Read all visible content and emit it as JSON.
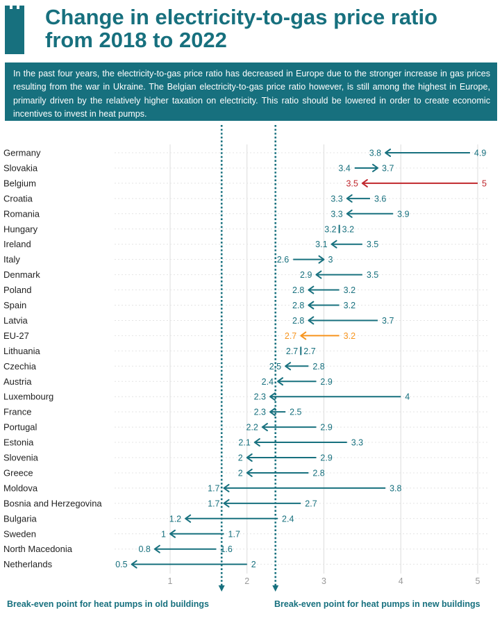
{
  "header": {
    "title_line1": "Change in electricity-to-gas price ratio",
    "title_line2": "from 2018 to 2022",
    "description": "In the past four years, the electricity-to-gas price ratio has decreased in Europe due to the stronger increase in gas prices resulting from the war in Ukraine. The Belgian electricity-to-gas price ratio however, is still among the highest in Europe, primarily driven by the relatively higher taxation on electricity. This ratio should be lowered in order to create economic incentives to invest in heat pumps."
  },
  "colors": {
    "primary": "#17707e",
    "belgium": "#c0272d",
    "eu27": "#f7941d",
    "text": "#222222"
  },
  "icons": {
    "logo": "tower-logo-icon",
    "arrowhead": "arrowhead-icon"
  },
  "chart_data": {
    "type": "dumbbell-arrow",
    "xlim": [
      0.5,
      5
    ],
    "x_ticks": [
      "1",
      "2",
      "3",
      "4",
      "5"
    ],
    "grid": true,
    "series_order": [
      "2018",
      "2022"
    ],
    "rows": [
      {
        "country": "Germany",
        "from": 4.9,
        "to": 3.8,
        "from_label": "4.9",
        "to_label": "3.8",
        "highlight": "none"
      },
      {
        "country": "Slovakia",
        "from": 3.4,
        "to": 3.7,
        "from_label": "3.4",
        "to_label": "3.7",
        "highlight": "none"
      },
      {
        "country": "Belgium",
        "from": 5,
        "to": 3.5,
        "from_label": "5",
        "to_label": "3.5",
        "highlight": "belgium"
      },
      {
        "country": "Croatia",
        "from": 3.6,
        "to": 3.3,
        "from_label": "3.6",
        "to_label": "3.3",
        "highlight": "none"
      },
      {
        "country": "Romania",
        "from": 3.9,
        "to": 3.3,
        "from_label": "3.9",
        "to_label": "3.3",
        "highlight": "none"
      },
      {
        "country": "Hungary",
        "from": 3.2,
        "to": 3.2,
        "from_label": "3.2",
        "to_label": "3.2",
        "highlight": "none"
      },
      {
        "country": "Ireland",
        "from": 3.5,
        "to": 3.1,
        "from_label": "3.5",
        "to_label": "3.1",
        "highlight": "none"
      },
      {
        "country": "Italy",
        "from": 2.6,
        "to": 3,
        "from_label": "2.6",
        "to_label": "3",
        "highlight": "none"
      },
      {
        "country": "Denmark",
        "from": 3.5,
        "to": 2.9,
        "from_label": "3.5",
        "to_label": "2.9",
        "highlight": "none"
      },
      {
        "country": "Poland",
        "from": 3.2,
        "to": 2.8,
        "from_label": "3.2",
        "to_label": "2.8",
        "highlight": "none"
      },
      {
        "country": "Spain",
        "from": 3.2,
        "to": 2.8,
        "from_label": "3.2",
        "to_label": "2.8",
        "highlight": "none"
      },
      {
        "country": "Latvia",
        "from": 3.7,
        "to": 2.8,
        "from_label": "3.7",
        "to_label": "2.8",
        "highlight": "none"
      },
      {
        "country": "EU-27",
        "from": 3.2,
        "to": 2.7,
        "from_label": "3.2",
        "to_label": "2.7",
        "highlight": "eu27"
      },
      {
        "country": "Lithuania",
        "from": 2.7,
        "to": 2.7,
        "from_label": "2.7",
        "to_label": "2.7",
        "highlight": "none"
      },
      {
        "country": "Czechia",
        "from": 2.8,
        "to": 2.5,
        "from_label": "2.8",
        "to_label": "2.5",
        "highlight": "none"
      },
      {
        "country": "Austria",
        "from": 2.9,
        "to": 2.4,
        "from_label": "2.9",
        "to_label": "2.4",
        "highlight": "none"
      },
      {
        "country": "Luxembourg",
        "from": 4,
        "to": 2.3,
        "from_label": "4",
        "to_label": "2.3",
        "highlight": "none"
      },
      {
        "country": "France",
        "from": 2.5,
        "to": 2.3,
        "from_label": "2.5",
        "to_label": "2.3",
        "highlight": "none"
      },
      {
        "country": "Portugal",
        "from": 2.9,
        "to": 2.2,
        "from_label": "2.9",
        "to_label": "2.2",
        "highlight": "none"
      },
      {
        "country": "Estonia",
        "from": 3.3,
        "to": 2.1,
        "from_label": "3.3",
        "to_label": "2.1",
        "highlight": "none"
      },
      {
        "country": "Slovenia",
        "from": 2.9,
        "to": 2,
        "from_label": "2.9",
        "to_label": "2",
        "highlight": "none"
      },
      {
        "country": "Greece",
        "from": 2.8,
        "to": 2,
        "from_label": "2.8",
        "to_label": "2",
        "highlight": "none"
      },
      {
        "country": "Moldova",
        "from": 3.8,
        "to": 1.7,
        "from_label": "3.8",
        "to_label": "1.7",
        "highlight": "none"
      },
      {
        "country": "Bosnia and Herzegovina",
        "from": 2.7,
        "to": 1.7,
        "from_label": "2.7",
        "to_label": "1.7",
        "highlight": "none"
      },
      {
        "country": "Bulgaria",
        "from": 2.4,
        "to": 1.2,
        "from_label": "2.4",
        "to_label": "1.2",
        "highlight": "none"
      },
      {
        "country": "Sweden",
        "from": 1.7,
        "to": 1,
        "from_label": "1.7",
        "to_label": "1",
        "highlight": "none"
      },
      {
        "country": "North Macedonia",
        "from": 1.6,
        "to": 0.8,
        "from_label": "1.6",
        "to_label": "0.8",
        "highlight": "none"
      },
      {
        "country": "Netherlands",
        "from": 2,
        "to": 0.5,
        "from_label": "2",
        "to_label": "0.5",
        "highlight": "none"
      }
    ],
    "reference_lines": [
      {
        "value": 1.67,
        "label": "Break-even point for heat pumps in old buildings"
      },
      {
        "value": 2.37,
        "label": "Break-even point for heat pumps in new buildings"
      }
    ]
  }
}
